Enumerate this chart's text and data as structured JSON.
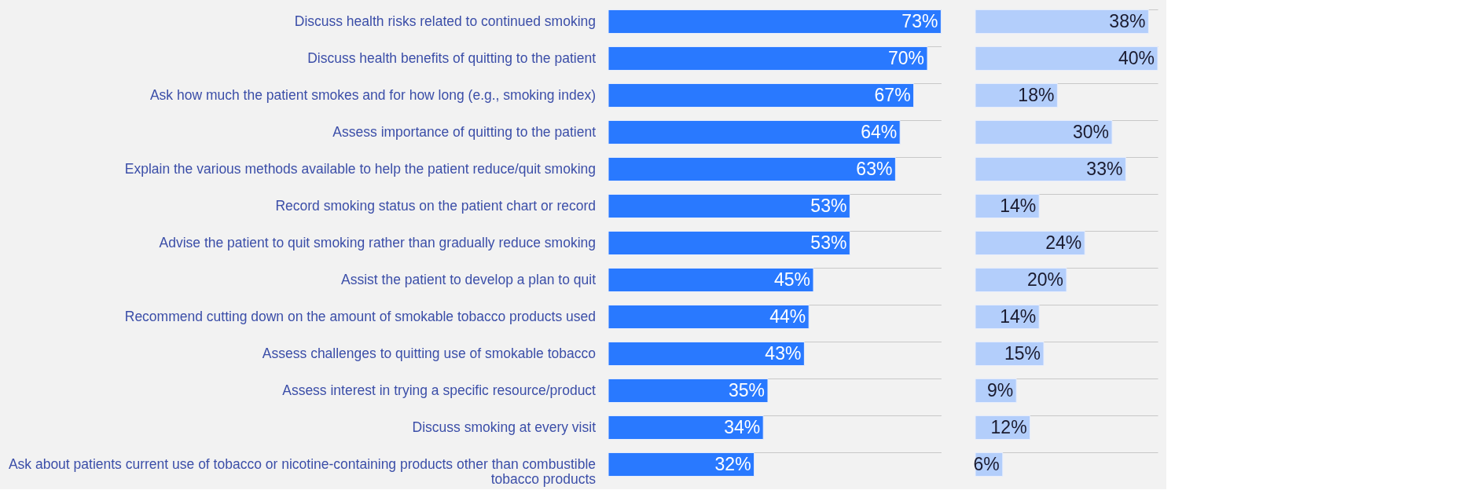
{
  "chart_data": [
    {
      "type": "bar",
      "orientation": "horizontal",
      "grid": "y",
      "tick_labels": "y",
      "data_labels": false,
      "categories": [
        "Discuss health risks related to continued smoking",
        "Discuss health benefits of quitting to the patient",
        "Ask how much the patient smokes and for how long (e.g., smoking index)",
        "Assess importance of quitting to the patient",
        "Explain the various methods available to help the patient reduce/quit smoking",
        "Record smoking status on the patient chart or record",
        "Advise the patient to quit smoking rather than gradually reduce smoking",
        "Assist the patient to develop a plan to quit",
        "Recommend cutting down on the amount of smokable tobacco products used",
        "Assess challenges to quitting use of smokable tobacco",
        "Assess interest in trying a specific resource/product",
        "Discuss smoking at every visit",
        "Ask about patients current use of tobacco or nicotine-containing products other than combustible tobacco products"
      ],
      "values": [
        73,
        70,
        67,
        64,
        63,
        53,
        53,
        45,
        44,
        43,
        35,
        34,
        32
      ],
      "value_labels": [
        "73%",
        "70%",
        "67%",
        "64%",
        "63%",
        "53%",
        "53%",
        "45%",
        "44%",
        "43%",
        "35%",
        "34%",
        "32%"
      ],
      "color": "#2979ff"
    },
    {
      "type": "bar",
      "orientation": "horizontal",
      "grid": "y",
      "tick_labels": false,
      "data_labels": false,
      "categories": [
        null,
        null,
        null,
        null,
        null,
        null,
        null,
        null,
        null,
        null,
        null,
        null,
        null
      ],
      "values": [
        38,
        40,
        18,
        30,
        33,
        14,
        24,
        20,
        14,
        15,
        9,
        12,
        6
      ],
      "value_labels": [
        "38%",
        "40%",
        "18%",
        "30%",
        "33%",
        "14%",
        "24%",
        "20%",
        "14%",
        "15%",
        "9%",
        "12%",
        "6%"
      ],
      "color": "#b3cefb"
    }
  ]
}
